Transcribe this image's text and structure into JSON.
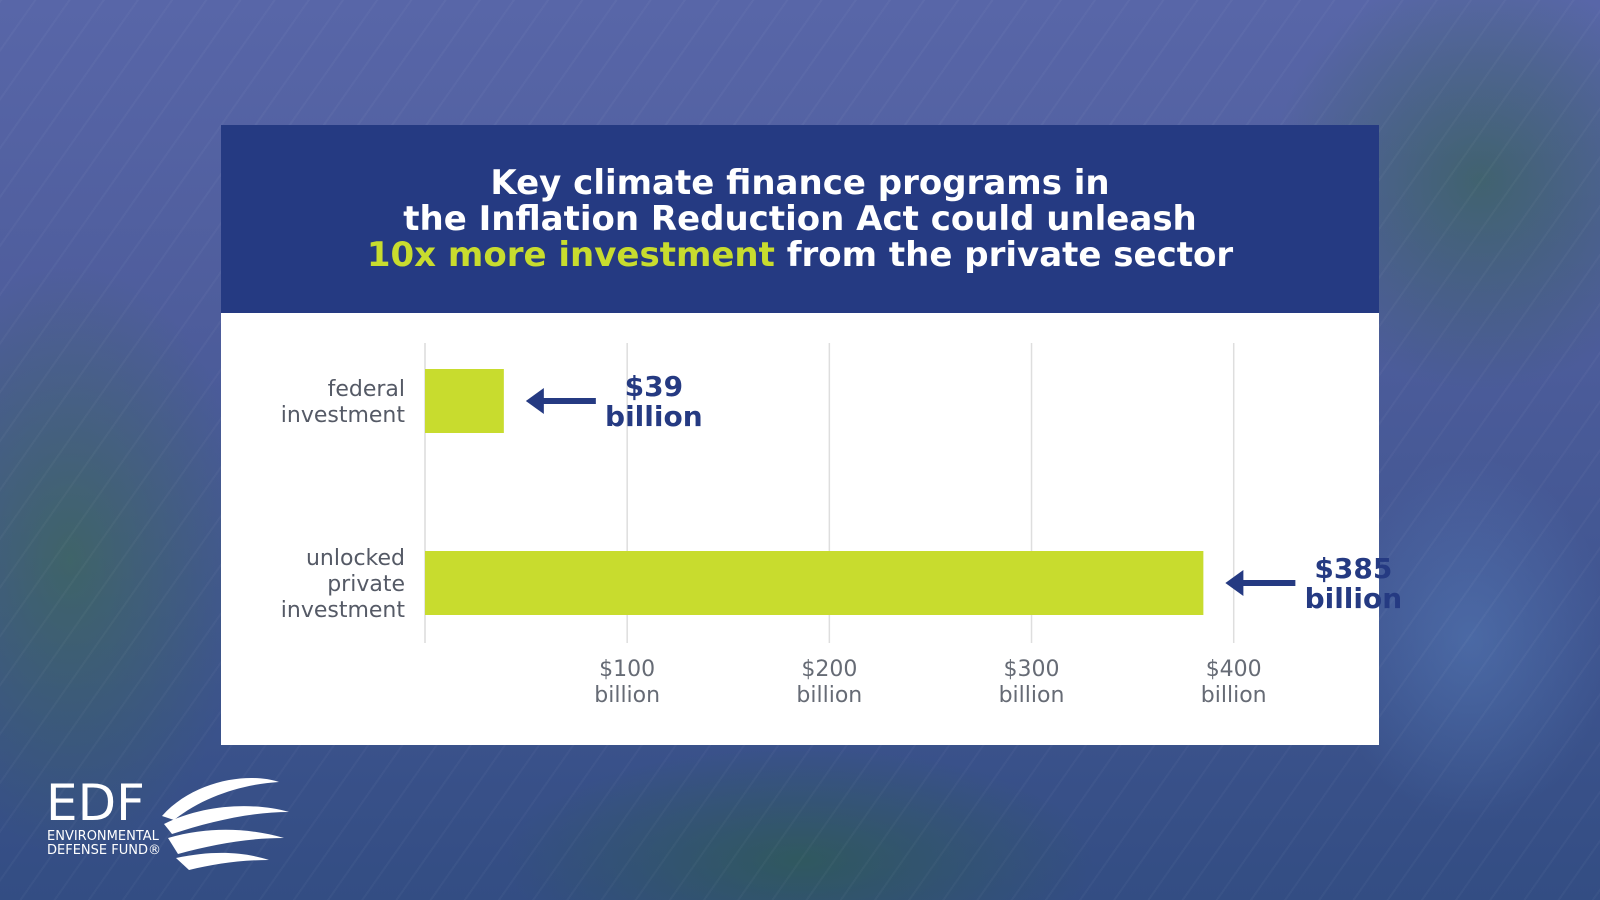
{
  "header": {
    "line1": "Key climate finance programs in",
    "line2": "the Inflation Reduction Act could unleash",
    "line3_highlight": "10x more investment",
    "line3_rest": " from the private sector"
  },
  "colors": {
    "header_bg": "#253a82",
    "highlight": "#c8dc2e",
    "bar": "#c8dc2e",
    "annotation": "#253a82"
  },
  "chart_data": {
    "type": "bar",
    "orientation": "horizontal",
    "categories": [
      [
        "federal",
        "investment"
      ],
      [
        "unlocked",
        "private",
        "investment"
      ]
    ],
    "values": [
      39,
      385
    ],
    "value_labels": [
      [
        "$39",
        "billion"
      ],
      [
        "$385",
        "billion"
      ]
    ],
    "xlim": [
      0,
      460
    ],
    "xticks": [
      100,
      200,
      300,
      400
    ],
    "xtick_labels": [
      [
        "$100",
        "billion"
      ],
      [
        "$200",
        "billion"
      ],
      [
        "$300",
        "billion"
      ],
      [
        "$400",
        "billion"
      ]
    ],
    "grid": true,
    "annotations": "arrow pointing left to each bar"
  },
  "logo": {
    "name": "EDF",
    "sub1": "ENVIRONMENTAL",
    "sub2": "DEFENSE FUND®"
  }
}
